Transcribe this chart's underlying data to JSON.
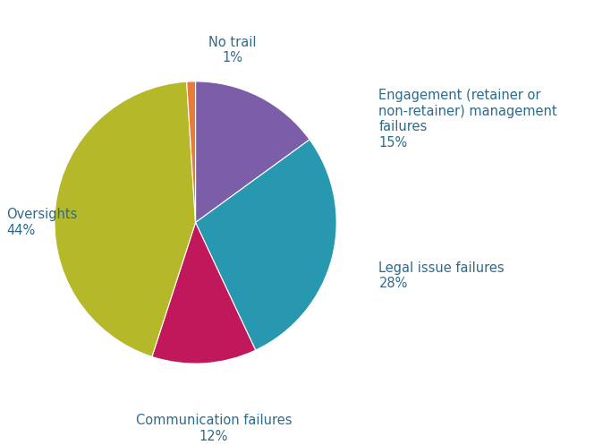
{
  "slices": [
    {
      "label_line1": "Engagement (retainer or",
      "label_line2": "non-retainer) management",
      "label_line3": "failures",
      "label_pct": "15%",
      "value": 15,
      "color": "#7b5ea7"
    },
    {
      "label_line1": "Legal issue failures",
      "label_line2": "",
      "label_line3": "",
      "label_pct": "28%",
      "value": 28,
      "color": "#2898b0"
    },
    {
      "label_line1": "Communication failures",
      "label_line2": "",
      "label_line3": "",
      "label_pct": "12%",
      "value": 12,
      "color": "#c0185a"
    },
    {
      "label_line1": "Oversights",
      "label_line2": "",
      "label_line3": "",
      "label_pct": "44%",
      "value": 44,
      "color": "#b5b829"
    },
    {
      "label_line1": "No trail",
      "label_line2": "",
      "label_line3": "",
      "label_pct": "1%",
      "value": 1,
      "color": "#e87a3a"
    }
  ],
  "text_color": "#2e6b8a",
  "background_color": "#ffffff",
  "label_fontsize": 10.5,
  "pct_fontsize": 10.5
}
